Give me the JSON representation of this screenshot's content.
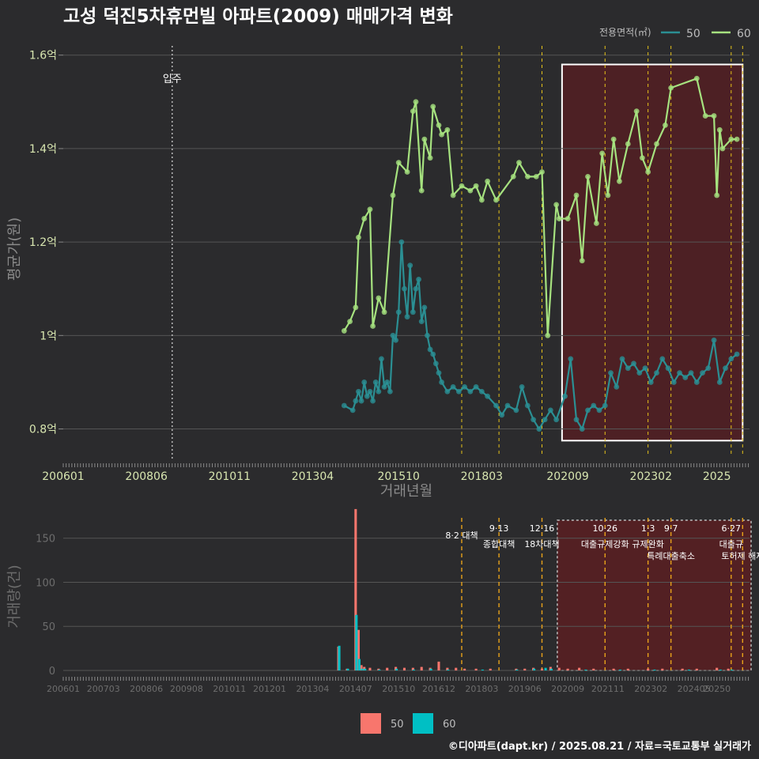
{
  "title": "고성 덕진5차휴먼빌 아파트(2009) 매매가격 변화",
  "credit": "©디아파트(dapt.kr) / 2025.08.21 / 자료=국토교통부 실거래가",
  "colors": {
    "background": "#2b2b2d",
    "grid": "#555555",
    "series_50_line": "#2b8f93",
    "series_60_line": "#a6e27f",
    "bar_50": "#f8766d",
    "bar_60": "#00bfc4",
    "policy_line": "#e6c21a",
    "highlight_fill": "#5a1e22",
    "tick_text": "#d8e6b0"
  },
  "chart_data": [
    {
      "type": "line",
      "title": "고성 덕진5차휴먼빌 아파트(2009) 매매가격 변화",
      "xlabel": "거래년월",
      "ylabel": "평균가(원)",
      "x_tick_labels": [
        "200601",
        "200806",
        "201011",
        "201304",
        "201510",
        "201803",
        "202009",
        "202302",
        "2025"
      ],
      "y_tick_labels": [
        "0.8억",
        "1억",
        "1.2억",
        "1.4억",
        "1.6억"
      ],
      "ylim": [
        0.74,
        1.63
      ],
      "legend": {
        "title": "전용면적(㎡)",
        "position": "top-right",
        "entries": [
          "50",
          "60"
        ]
      },
      "annotations": [
        {
          "text": "입주",
          "x": "2009.03"
        }
      ],
      "policy_dates": [
        "2017.08",
        "2018.09",
        "2019.12",
        "2021.10",
        "2023.01",
        "2023.09",
        "2025.06",
        "2025.10"
      ],
      "highlight_range": [
        "2020.07",
        "2025.10"
      ],
      "series": [
        {
          "name": "50",
          "points": [
            [
              "2014.03",
              0.85
            ],
            [
              "2014.06",
              0.84
            ],
            [
              "2014.07",
              0.86
            ],
            [
              "2014.08",
              0.88
            ],
            [
              "2014.09",
              0.86
            ],
            [
              "2014.10",
              0.9
            ],
            [
              "2014.11",
              0.87
            ],
            [
              "2014.12",
              0.88
            ],
            [
              "2015.01",
              0.86
            ],
            [
              "2015.02",
              0.9
            ],
            [
              "2015.03",
              0.88
            ],
            [
              "2015.04",
              0.95
            ],
            [
              "2015.05",
              0.89
            ],
            [
              "2015.06",
              0.9
            ],
            [
              "2015.07",
              0.88
            ],
            [
              "2015.08",
              1.0
            ],
            [
              "2015.09",
              0.99
            ],
            [
              "2015.10",
              1.05
            ],
            [
              "2015.11",
              1.2
            ],
            [
              "2015.12",
              1.1
            ],
            [
              "2016.01",
              1.04
            ],
            [
              "2016.02",
              1.15
            ],
            [
              "2016.03",
              1.05
            ],
            [
              "2016.04",
              1.1
            ],
            [
              "2016.05",
              1.12
            ],
            [
              "2016.06",
              1.03
            ],
            [
              "2016.07",
              1.06
            ],
            [
              "2016.08",
              1.0
            ],
            [
              "2016.09",
              0.97
            ],
            [
              "2016.10",
              0.96
            ],
            [
              "2016.11",
              0.94
            ],
            [
              "2016.12",
              0.92
            ],
            [
              "2017.01",
              0.9
            ],
            [
              "2017.03",
              0.88
            ],
            [
              "2017.05",
              0.89
            ],
            [
              "2017.07",
              0.88
            ],
            [
              "2017.09",
              0.89
            ],
            [
              "2017.11",
              0.88
            ],
            [
              "2018.01",
              0.89
            ],
            [
              "2018.03",
              0.88
            ],
            [
              "2018.05",
              0.87
            ],
            [
              "2018.08",
              0.85
            ],
            [
              "2018.10",
              0.83
            ],
            [
              "2018.12",
              0.85
            ],
            [
              "2019.03",
              0.84
            ],
            [
              "2019.05",
              0.89
            ],
            [
              "2019.07",
              0.85
            ],
            [
              "2019.09",
              0.82
            ],
            [
              "2019.11",
              0.8
            ],
            [
              "2020.01",
              0.82
            ],
            [
              "2020.03",
              0.84
            ],
            [
              "2020.05",
              0.82
            ],
            [
              "2020.08",
              0.87
            ],
            [
              "2020.10",
              0.95
            ],
            [
              "2020.12",
              0.82
            ],
            [
              "2021.02",
              0.8
            ],
            [
              "2021.04",
              0.84
            ],
            [
              "2021.06",
              0.85
            ],
            [
              "2021.08",
              0.84
            ],
            [
              "2021.10",
              0.85
            ],
            [
              "2021.12",
              0.92
            ],
            [
              "2022.02",
              0.89
            ],
            [
              "2022.04",
              0.95
            ],
            [
              "2022.06",
              0.93
            ],
            [
              "2022.08",
              0.94
            ],
            [
              "2022.10",
              0.92
            ],
            [
              "2022.12",
              0.93
            ],
            [
              "2023.02",
              0.9
            ],
            [
              "2023.04",
              0.92
            ],
            [
              "2023.06",
              0.95
            ],
            [
              "2023.08",
              0.93
            ],
            [
              "2023.10",
              0.9
            ],
            [
              "2023.12",
              0.92
            ],
            [
              "2024.02",
              0.91
            ],
            [
              "2024.04",
              0.92
            ],
            [
              "2024.06",
              0.9
            ],
            [
              "2024.08",
              0.92
            ],
            [
              "2024.10",
              0.93
            ],
            [
              "2024.12",
              0.99
            ],
            [
              "2025.02",
              0.9
            ],
            [
              "2025.04",
              0.93
            ],
            [
              "2025.06",
              0.95
            ],
            [
              "2025.08",
              0.96
            ]
          ]
        },
        {
          "name": "60",
          "points": [
            [
              "2014.03",
              1.01
            ],
            [
              "2014.05",
              1.03
            ],
            [
              "2014.07",
              1.06
            ],
            [
              "2014.08",
              1.21
            ],
            [
              "2014.10",
              1.25
            ],
            [
              "2014.12",
              1.27
            ],
            [
              "2015.01",
              1.02
            ],
            [
              "2015.03",
              1.08
            ],
            [
              "2015.05",
              1.05
            ],
            [
              "2015.08",
              1.3
            ],
            [
              "2015.10",
              1.37
            ],
            [
              "2016.01",
              1.35
            ],
            [
              "2016.03",
              1.48
            ],
            [
              "2016.04",
              1.5
            ],
            [
              "2016.06",
              1.31
            ],
            [
              "2016.07",
              1.42
            ],
            [
              "2016.09",
              1.38
            ],
            [
              "2016.10",
              1.49
            ],
            [
              "2016.12",
              1.45
            ],
            [
              "2017.01",
              1.43
            ],
            [
              "2017.03",
              1.44
            ],
            [
              "2017.05",
              1.3
            ],
            [
              "2017.08",
              1.32
            ],
            [
              "2017.11",
              1.31
            ],
            [
              "2018.01",
              1.32
            ],
            [
              "2018.03",
              1.29
            ],
            [
              "2018.05",
              1.33
            ],
            [
              "2018.08",
              1.29
            ],
            [
              "2019.02",
              1.34
            ],
            [
              "2019.04",
              1.37
            ],
            [
              "2019.07",
              1.34
            ],
            [
              "2019.10",
              1.34
            ],
            [
              "2019.12",
              1.35
            ],
            [
              "2020.02",
              1.0
            ],
            [
              "2020.05",
              1.28
            ],
            [
              "2020.06",
              1.25
            ],
            [
              "2020.09",
              1.25
            ],
            [
              "2020.12",
              1.3
            ],
            [
              "2021.02",
              1.16
            ],
            [
              "2021.04",
              1.34
            ],
            [
              "2021.07",
              1.24
            ],
            [
              "2021.09",
              1.39
            ],
            [
              "2021.11",
              1.3
            ],
            [
              "2022.01",
              1.42
            ],
            [
              "2022.03",
              1.33
            ],
            [
              "2022.06",
              1.41
            ],
            [
              "2022.09",
              1.48
            ],
            [
              "2022.11",
              1.38
            ],
            [
              "2023.01",
              1.35
            ],
            [
              "2023.04",
              1.41
            ],
            [
              "2023.07",
              1.45
            ],
            [
              "2023.09",
              1.53
            ],
            [
              "2024.06",
              1.55
            ],
            [
              "2024.09",
              1.47
            ],
            [
              "2024.12",
              1.47
            ],
            [
              "2025.01",
              1.3
            ],
            [
              "2025.02",
              1.44
            ],
            [
              "2025.03",
              1.4
            ],
            [
              "2025.06",
              1.42
            ],
            [
              "2025.08",
              1.42
            ]
          ]
        }
      ]
    },
    {
      "type": "bar",
      "ylabel": "거래량(건)",
      "y_tick_labels": [
        "0",
        "50",
        "100",
        "150"
      ],
      "ylim": [
        0,
        182
      ],
      "x_tick_labels": [
        "200601",
        "200703",
        "200806",
        "200908",
        "201011",
        "201201",
        "201304",
        "201407",
        "201510",
        "201612",
        "201803",
        "201906",
        "202009",
        "202111",
        "202302",
        "202405",
        "20250"
      ],
      "policy_labels": [
        {
          "date": "2017.08",
          "line1": "",
          "line2": "8·2 대책"
        },
        {
          "date": "2018.09",
          "line1": "9·13",
          "line2": "종합대책"
        },
        {
          "date": "2019.12",
          "line1": "12·16",
          "line2": "18차대책"
        },
        {
          "date": "2021.10",
          "line1": "10·26",
          "line2": "대출규제강화"
        },
        {
          "date": "2023.01",
          "line1": "1·3",
          "line2": "규제완화"
        },
        {
          "date": "2023.09",
          "line1": "9·7",
          "line2": "특례대출축소"
        },
        {
          "date": "2025.06",
          "line1": "6·27",
          "line2": "대출규"
        },
        {
          "date": "2025.10",
          "line1": "",
          "line2": "토허제 해제"
        }
      ],
      "legend": {
        "position": "bottom",
        "entries": [
          "50",
          "60"
        ]
      },
      "series": [
        {
          "name": "50",
          "bars": [
            [
              "2014.01",
              27
            ],
            [
              "2014.04",
              2
            ],
            [
              "2014.07",
              183
            ],
            [
              "2014.08",
              46
            ],
            [
              "2014.09",
              6
            ],
            [
              "2014.10",
              4
            ],
            [
              "2014.12",
              3
            ],
            [
              "2015.03",
              2
            ],
            [
              "2015.06",
              3
            ],
            [
              "2015.09",
              4
            ],
            [
              "2015.12",
              3
            ],
            [
              "2016.03",
              3
            ],
            [
              "2016.06",
              4
            ],
            [
              "2016.09",
              3
            ],
            [
              "2016.12",
              10
            ],
            [
              "2017.03",
              3
            ],
            [
              "2017.06",
              3
            ],
            [
              "2017.09",
              2
            ],
            [
              "2018.01",
              2
            ],
            [
              "2018.06",
              2
            ],
            [
              "2019.03",
              2
            ],
            [
              "2019.06",
              2
            ],
            [
              "2019.09",
              3
            ],
            [
              "2019.12",
              2
            ],
            [
              "2020.03",
              4
            ],
            [
              "2020.06",
              3
            ],
            [
              "2020.09",
              2
            ],
            [
              "2021.01",
              3
            ],
            [
              "2021.06",
              2
            ],
            [
              "2022.01",
              2
            ],
            [
              "2022.06",
              2
            ],
            [
              "2023.01",
              2
            ],
            [
              "2023.06",
              2
            ],
            [
              "2024.01",
              2
            ],
            [
              "2024.06",
              2
            ],
            [
              "2025.01",
              3
            ],
            [
              "2025.05",
              2
            ]
          ]
        },
        {
          "name": "60",
          "bars": [
            [
              "2014.01",
              28
            ],
            [
              "2014.04",
              2
            ],
            [
              "2014.07",
              63
            ],
            [
              "2014.08",
              13
            ],
            [
              "2014.09",
              2
            ],
            [
              "2014.10",
              2
            ],
            [
              "2015.03",
              1
            ],
            [
              "2015.09",
              2
            ],
            [
              "2016.03",
              1
            ],
            [
              "2016.09",
              2
            ],
            [
              "2017.03",
              1
            ],
            [
              "2018.03",
              1
            ],
            [
              "2019.03",
              1
            ],
            [
              "2019.09",
              2
            ],
            [
              "2020.01",
              3
            ],
            [
              "2020.03",
              2
            ],
            [
              "2021.03",
              1
            ],
            [
              "2022.03",
              1
            ],
            [
              "2023.03",
              1
            ],
            [
              "2024.03",
              1
            ],
            [
              "2025.02",
              1
            ],
            [
              "2025.06",
              1
            ]
          ]
        }
      ]
    }
  ]
}
